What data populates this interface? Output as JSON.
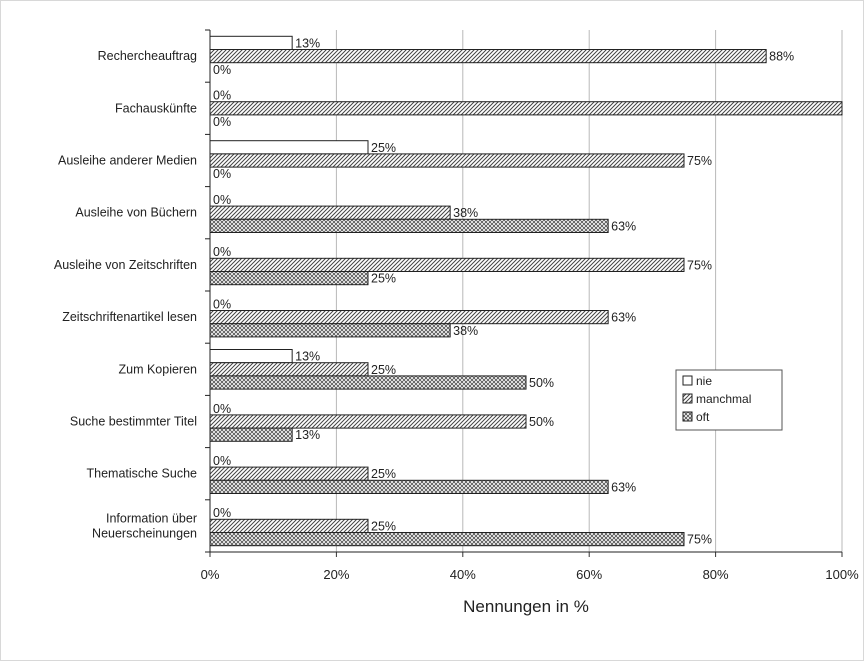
{
  "chart_data": {
    "type": "bar",
    "orientation": "horizontal",
    "categories": [
      "Rechercheauftrag",
      "Fachauskünfte",
      "Ausleihe anderer Medien",
      "Ausleihe von Büchern",
      "Ausleihe von Zeitschriften",
      "Zeitschriftenartikel lesen",
      "Zum Kopieren",
      "Suche bestimmter Titel",
      "Thematische Suche",
      "Information über\nNeuerscheinungen"
    ],
    "series": [
      {
        "name": "nie",
        "values": [
          13,
          0,
          25,
          0,
          0,
          0,
          13,
          0,
          0,
          0
        ],
        "labels": [
          "13%",
          "0%",
          "25%",
          "0%",
          "0%",
          "0%",
          "13%",
          "0%",
          "0%",
          "0%"
        ],
        "pattern": "white"
      },
      {
        "name": "manchmal",
        "values": [
          88,
          100,
          75,
          38,
          75,
          63,
          25,
          50,
          25,
          25
        ],
        "labels": [
          "88%",
          "",
          "75%",
          "38%",
          "75%",
          "63%",
          "25%",
          "50%",
          "25%",
          "25%"
        ],
        "pattern": "diagonal"
      },
      {
        "name": "oft",
        "values": [
          0,
          0,
          0,
          63,
          25,
          38,
          50,
          13,
          63,
          75
        ],
        "labels": [
          "0%",
          "0%",
          "0%",
          "63%",
          "25%",
          "38%",
          "50%",
          "13%",
          "63%",
          "75%"
        ],
        "pattern": "crosshatch"
      }
    ],
    "xlabel": "Nennungen in %",
    "ylabel": "",
    "xlim": [
      0,
      100
    ],
    "xticks": [
      "0%",
      "20%",
      "40%",
      "60%",
      "80%",
      "100%"
    ],
    "grid": true,
    "legend_position": "right"
  }
}
